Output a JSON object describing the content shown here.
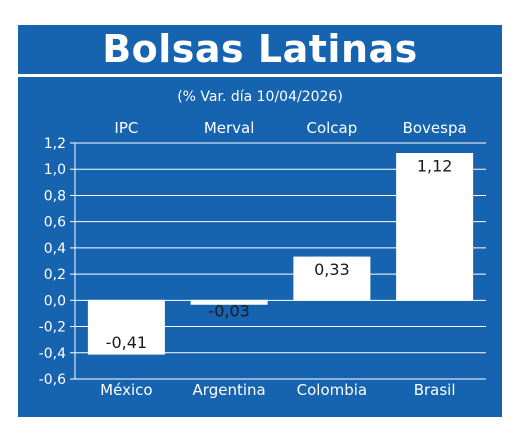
{
  "header": {
    "title": "Bolsas Latinas",
    "subtitle": "(% Var. día 10/04/2026)"
  },
  "colors": {
    "background": "#1663b0",
    "bars": "#ffffff",
    "text": "#ffffff",
    "value_text": "#1a1a1a"
  },
  "chart_data": {
    "type": "bar",
    "title": "Bolsas Latinas",
    "subtitle": "(% Var. día 10/04/2026)",
    "categories": [
      "IPC",
      "Merval",
      "Colcap",
      "Bovespa"
    ],
    "countries": [
      "México",
      "Argentina",
      "Colombia",
      "Brasil"
    ],
    "values": [
      -0.41,
      -0.03,
      0.33,
      1.12
    ],
    "value_labels": [
      "-0,41",
      "-0,03",
      "0,33",
      "1,12"
    ],
    "ylim": [
      -0.6,
      1.2
    ],
    "yticks": [
      1.2,
      1.0,
      0.8,
      0.6,
      0.4,
      0.2,
      0.0,
      -0.2,
      -0.4,
      -0.6
    ],
    "ytick_labels": [
      "1,2",
      "1,0",
      "0,8",
      "0,6",
      "0,4",
      "0,2",
      "0,0",
      "-0,2",
      "-0,4",
      "-0,6"
    ],
    "grid": true,
    "xlabel": "",
    "ylabel": ""
  }
}
